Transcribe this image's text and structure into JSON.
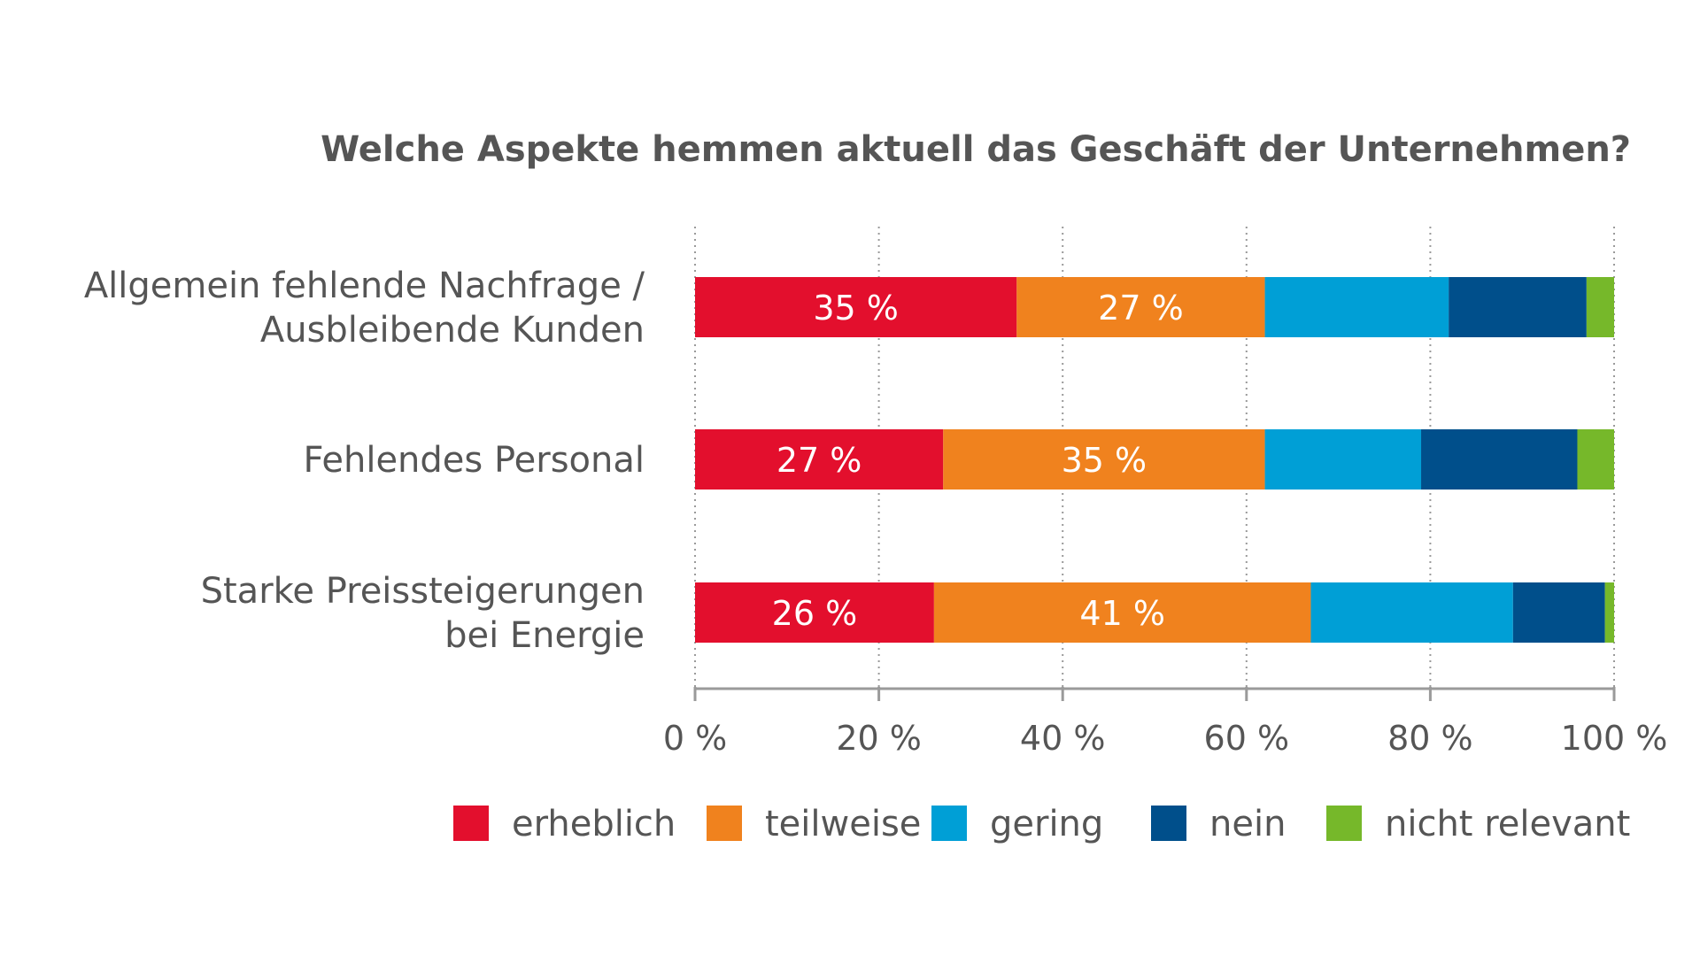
{
  "chart_data": {
    "type": "bar",
    "orientation": "horizontal",
    "stacked": true,
    "title": "Welche Aspekte hemmen aktuell das Geschäft der Unternehmen?",
    "categories": [
      [
        "Allgemein fehlende Nachfrage /",
        "Ausbleibende Kunden"
      ],
      [
        "Fehlendes Personal"
      ],
      [
        "Starke Preissteigerungen",
        "bei Energie"
      ]
    ],
    "series": [
      {
        "name": "erheblich",
        "color": "#e30f2d",
        "values": [
          35,
          27,
          26
        ],
        "labels": [
          "35 %",
          "27 %",
          "26 %"
        ]
      },
      {
        "name": "teilweise",
        "color": "#f0821e",
        "values": [
          27,
          35,
          41
        ],
        "labels": [
          "27 %",
          "35 %",
          "41 %"
        ]
      },
      {
        "name": "gering",
        "color": "#009fd6",
        "values": [
          20,
          17,
          22
        ],
        "labels": [
          "",
          "",
          ""
        ]
      },
      {
        "name": "nein",
        "color": "#004f8b",
        "values": [
          15,
          17,
          10
        ],
        "labels": [
          "",
          "",
          ""
        ]
      },
      {
        "name": "nicht relevant",
        "color": "#76b82a",
        "values": [
          3,
          4,
          1
        ],
        "labels": [
          "",
          "",
          ""
        ]
      }
    ],
    "xlim": [
      0,
      100
    ],
    "xticks": [
      0,
      20,
      40,
      60,
      80,
      100
    ],
    "xtick_labels": [
      "0 %",
      "20 %",
      "40 %",
      "60 %",
      "80 %",
      "100 %"
    ],
    "grid": "vertical dotted",
    "legend_position": "bottom"
  }
}
